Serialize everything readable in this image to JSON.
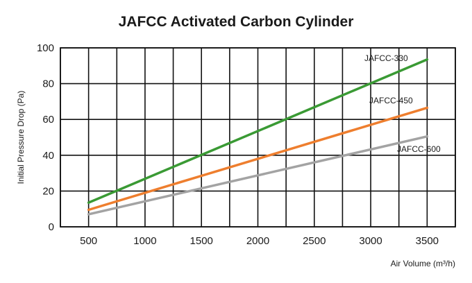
{
  "chart_data": {
    "type": "line",
    "title": "JAFCC Activated Carbon Cylinder",
    "xlabel": "Air Volume (m³/h)",
    "ylabel": "Initial Pressure Drop (Pa)",
    "xlim": [
      250,
      3750
    ],
    "ylim": [
      0,
      100
    ],
    "x_ticks": [
      500,
      1000,
      1500,
      2000,
      2500,
      3000,
      3500
    ],
    "y_ticks": [
      0,
      20,
      40,
      60,
      80,
      100
    ],
    "x_tick_labels": [
      "500",
      "1000",
      "1500",
      "2000",
      "2500",
      "3000",
      "3500"
    ],
    "y_tick_labels": [
      "0",
      "20",
      "40",
      "60",
      "80",
      "100"
    ],
    "grid": true,
    "legend": "inline labels at line ends",
    "series": [
      {
        "name": "JAFCC-330",
        "color": "#3a9a34",
        "x": [
          500,
          3500
        ],
        "y": [
          13.5,
          93.5
        ]
      },
      {
        "name": "JAFCC-450",
        "color": "#ee7e2e",
        "x": [
          500,
          3500
        ],
        "y": [
          9.5,
          66.5
        ]
      },
      {
        "name": "JAFCC-600",
        "color": "#a3a3a3",
        "x": [
          500,
          3500
        ],
        "y": [
          7,
          50.5
        ]
      }
    ]
  }
}
